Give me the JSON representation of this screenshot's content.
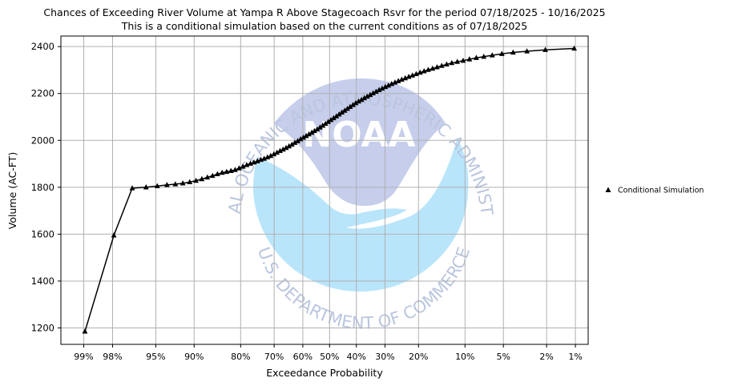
{
  "chart_data": {
    "type": "line",
    "title": "Chances of Exceeding River Volume at Yampa R Above Stagecoach Rsvr for the period 07/18/2025 - 10/16/2025",
    "subtitle": "This is a conditional simulation based on the current conditions as of 07/18/2025",
    "xlabel": "Exceedance Probability",
    "ylabel": "Volume (AC-FT)",
    "x_scale": "normal-probability",
    "x_ticks": [
      {
        "p": 99,
        "label": "99%"
      },
      {
        "p": 98,
        "label": "98%"
      },
      {
        "p": 95,
        "label": "95%"
      },
      {
        "p": 90,
        "label": "90%"
      },
      {
        "p": 80,
        "label": "80%"
      },
      {
        "p": 70,
        "label": "70%"
      },
      {
        "p": 60,
        "label": "60%"
      },
      {
        "p": 50,
        "label": "50%"
      },
      {
        "p": 40,
        "label": "40%"
      },
      {
        "p": 30,
        "label": "30%"
      },
      {
        "p": 20,
        "label": "20%"
      },
      {
        "p": 10,
        "label": "10%"
      },
      {
        "p": 5,
        "label": "5%"
      },
      {
        "p": 2,
        "label": "2%"
      },
      {
        "p": 1,
        "label": "1%"
      }
    ],
    "y_ticks": [
      1200,
      1400,
      1600,
      1800,
      2000,
      2200,
      2400
    ],
    "ylim": [
      1130,
      2445
    ],
    "xlim_percent": [
      99.45,
      0.72
    ],
    "grid": true,
    "legend_position": "right-outside",
    "series": [
      {
        "name": "Conditional Simulation",
        "color": "#000000",
        "marker": "triangle",
        "x": [
          98.97,
          97.94,
          96.91,
          95.88,
          94.85,
          93.81,
          92.78,
          91.75,
          90.72,
          89.69,
          88.66,
          87.63,
          86.6,
          85.57,
          84.54,
          83.51,
          82.47,
          81.44,
          80.41,
          79.38,
          78.35,
          77.32,
          76.29,
          75.26,
          74.23,
          73.2,
          72.16,
          71.13,
          70.1,
          69.07,
          68.04,
          67.01,
          65.98,
          64.95,
          63.92,
          62.89,
          61.86,
          60.82,
          59.79,
          58.76,
          57.73,
          56.7,
          55.67,
          54.64,
          53.61,
          52.58,
          51.55,
          50.52,
          49.48,
          48.45,
          47.42,
          46.39,
          45.36,
          44.33,
          43.3,
          42.27,
          41.24,
          40.21,
          39.18,
          38.14,
          37.11,
          36.08,
          35.05,
          34.02,
          32.99,
          31.96,
          30.93,
          29.9,
          28.87,
          27.84,
          26.8,
          25.77,
          24.74,
          23.71,
          22.68,
          21.65,
          20.62,
          19.59,
          18.56,
          17.53,
          16.49,
          15.46,
          14.43,
          13.4,
          12.37,
          11.34,
          10.31,
          9.28,
          8.25,
          7.22,
          6.19,
          5.15,
          4.12,
          3.09,
          2.06,
          1.03
        ],
        "y": [
          1185,
          1595,
          1796,
          1800,
          1805,
          1810,
          1813,
          1817,
          1822,
          1828,
          1835,
          1842,
          1849,
          1856,
          1862,
          1866,
          1870,
          1874,
          1881,
          1888,
          1895,
          1901,
          1906,
          1911,
          1917,
          1922,
          1928,
          1934,
          1941,
          1948,
          1955,
          1961,
          1968,
          1975,
          1982,
          1990,
          1997,
          2005,
          2012,
          2019,
          2026,
          2033,
          2040,
          2047,
          2055,
          2063,
          2071,
          2079,
          2087,
          2095,
          2103,
          2111,
          2119,
          2127,
          2135,
          2143,
          2151,
          2159,
          2166,
          2173,
          2180,
          2187,
          2194,
          2201,
          2208,
          2215,
          2221,
          2228,
          2234,
          2241,
          2247,
          2253,
          2259,
          2265,
          2271,
          2277,
          2283,
          2289,
          2295,
          2301,
          2306,
          2312,
          2318,
          2324,
          2330,
          2335,
          2340,
          2346,
          2352,
          2357,
          2363,
          2369,
          2375,
          2380,
          2386,
          2392
        ]
      }
    ]
  },
  "watermark": {
    "ring_top": "NATIONAL OCEANIC AND ATMOSPHERIC ADMINISTRATION",
    "ring_bottom": "U.S. DEPARTMENT OF COMMERCE",
    "logo": "NOAA",
    "colors": {
      "upper": "#c3cceb",
      "lower": "#b6e4fb",
      "text": "#b7c3dd"
    }
  }
}
